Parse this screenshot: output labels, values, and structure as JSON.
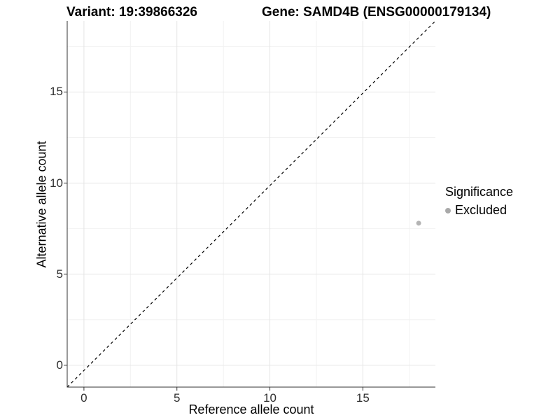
{
  "chart_data": {
    "type": "scatter",
    "titles": {
      "left": "Variant: 19:39866326",
      "right": "Gene: SAMD4B (ENSG00000179134)"
    },
    "xlabel": "Reference allele count",
    "ylabel": "Alternative allele count",
    "x_ticks": [
      0,
      5,
      10,
      15
    ],
    "y_ticks": [
      0,
      5,
      10,
      15
    ],
    "xlim": [
      -0.9,
      18.9
    ],
    "ylim": [
      -1.2,
      18.9
    ],
    "grid": "major+minor",
    "reference_line": {
      "type": "identity y=x",
      "style": "dashed",
      "color": "#000000"
    },
    "series": [
      {
        "name": "Excluded",
        "marker": "circle",
        "color": "#b4b4b4",
        "points": [
          {
            "x": 18,
            "y": 7.8
          }
        ]
      }
    ],
    "legend": {
      "title": "Significance",
      "position": "right",
      "items": [
        {
          "label": "Excluded",
          "color": "#a9a9a9",
          "marker": "circle"
        }
      ]
    }
  },
  "colors": {
    "background": "#ffffff",
    "axis_line": "#333333",
    "tick_label": "#303030",
    "grid_major": "#e5e5e5",
    "grid_minor": "#f2f2f2"
  }
}
